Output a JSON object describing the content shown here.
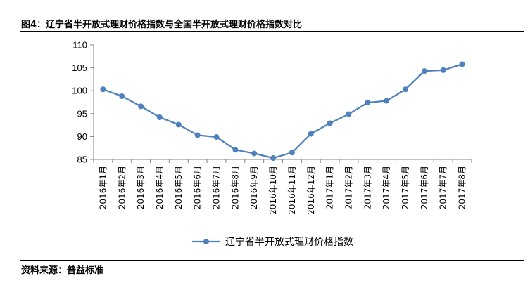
{
  "header": {
    "title": "图4：辽宁省半开放式理财价格指数与全国半开放式理财价格指数对比"
  },
  "footer": {
    "source": "资料来源：普益标准"
  },
  "colors": {
    "series": "#4f81bd",
    "axis": "#868686"
  },
  "chart_data": {
    "type": "line",
    "title": "图4：辽宁省半开放式理财价格指数与全国半开放式理财价格指数对比",
    "xlabel": "",
    "ylabel": "",
    "categories": [
      "2016年1月",
      "2016年2月",
      "2016年3月",
      "2016年4月",
      "2016年5月",
      "2016年6月",
      "2016年7月",
      "2016年8月",
      "2016年9月",
      "2016年10月",
      "2016年11月",
      "2016年12月",
      "2017年1月",
      "2017年2月",
      "2017年3月",
      "2017年4月",
      "2017年5月",
      "2017年6月",
      "2017年7月",
      "2017年8月"
    ],
    "series": [
      {
        "name": "辽宁省半开放式理财价格指数",
        "marker": "circle",
        "values": [
          100.3,
          98.8,
          96.6,
          94.2,
          92.6,
          90.3,
          89.9,
          87.1,
          86.3,
          85.3,
          86.5,
          90.6,
          92.9,
          94.9,
          97.4,
          97.8,
          100.3,
          104.3,
          104.5,
          105.8
        ]
      }
    ],
    "ylim": [
      85,
      110
    ],
    "yticks": [
      85,
      90,
      95,
      100,
      105,
      110
    ],
    "grid": false,
    "legend": "bottom"
  }
}
